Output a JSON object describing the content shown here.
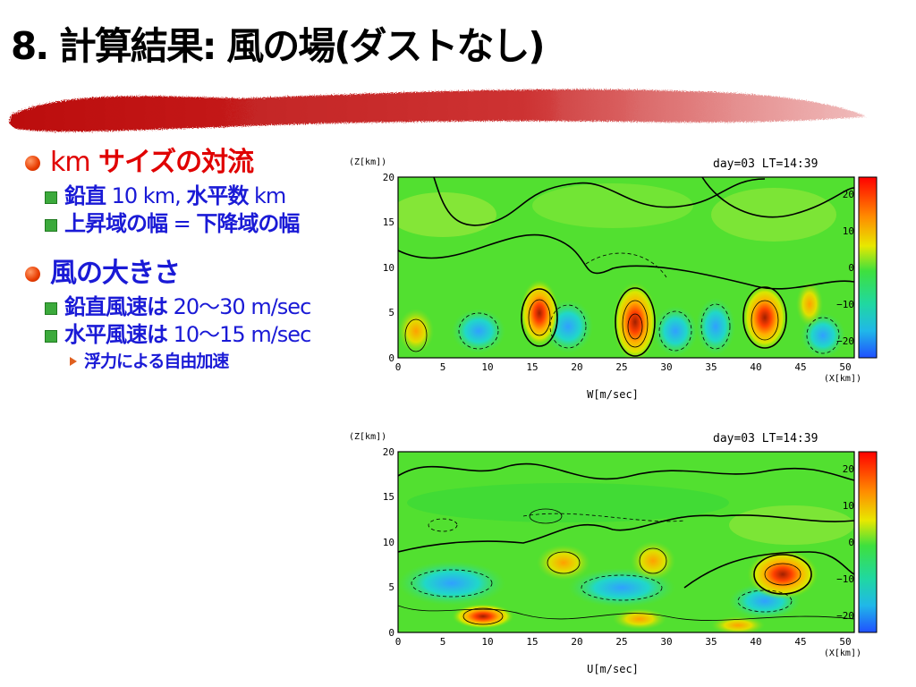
{
  "slide": {
    "title": "8. 計算結果: 風の場(ダストなし)"
  },
  "bullets": {
    "item1_prefix": "km",
    "item1_text": " サイズの対流",
    "item1_sub1_a": "鉛直",
    "item1_sub1_b": " 10 km, ",
    "item1_sub1_c": "水平数",
    "item1_sub1_d": " km",
    "item1_sub2_a": "上昇域の幅",
    "item1_sub2_b": " = ",
    "item1_sub2_c": "下降域の幅",
    "item2_text": "風の大きさ",
    "item2_sub1_a": "鉛直風速は",
    "item2_sub1_b": " 20〜30 m/sec",
    "item2_sub2_a": "水平風速は",
    "item2_sub2_b": " 10〜15 m/sec",
    "item2_sub2_sub": "浮力による自由加速"
  },
  "plots": {
    "colors": {
      "low": "#2f6bff",
      "mid": "#2ee02e",
      "high": "#ff2000"
    },
    "w": {
      "zlabel": "(Z[km])",
      "header": "day=03  LT=14:39",
      "xunit": "(X[km])",
      "caption": "W[m/sec]",
      "yticks": [
        "0",
        "5",
        "10",
        "15",
        "20"
      ],
      "xticks": [
        "0",
        "5",
        "10",
        "15",
        "20",
        "25",
        "30",
        "35",
        "40",
        "45",
        "50"
      ],
      "cticks": [
        "20",
        "10",
        "0",
        "−10",
        "−20"
      ]
    },
    "u": {
      "zlabel": "(Z[km])",
      "header": "day=03  LT=14:39",
      "xunit": "(X[km])",
      "caption": "U[m/sec]",
      "yticks": [
        "0",
        "5",
        "10",
        "15",
        "20"
      ],
      "xticks": [
        "0",
        "5",
        "10",
        "15",
        "20",
        "25",
        "30",
        "35",
        "40",
        "45",
        "50"
      ],
      "cticks": [
        "20",
        "10",
        "0",
        "−10",
        "−20"
      ]
    }
  }
}
